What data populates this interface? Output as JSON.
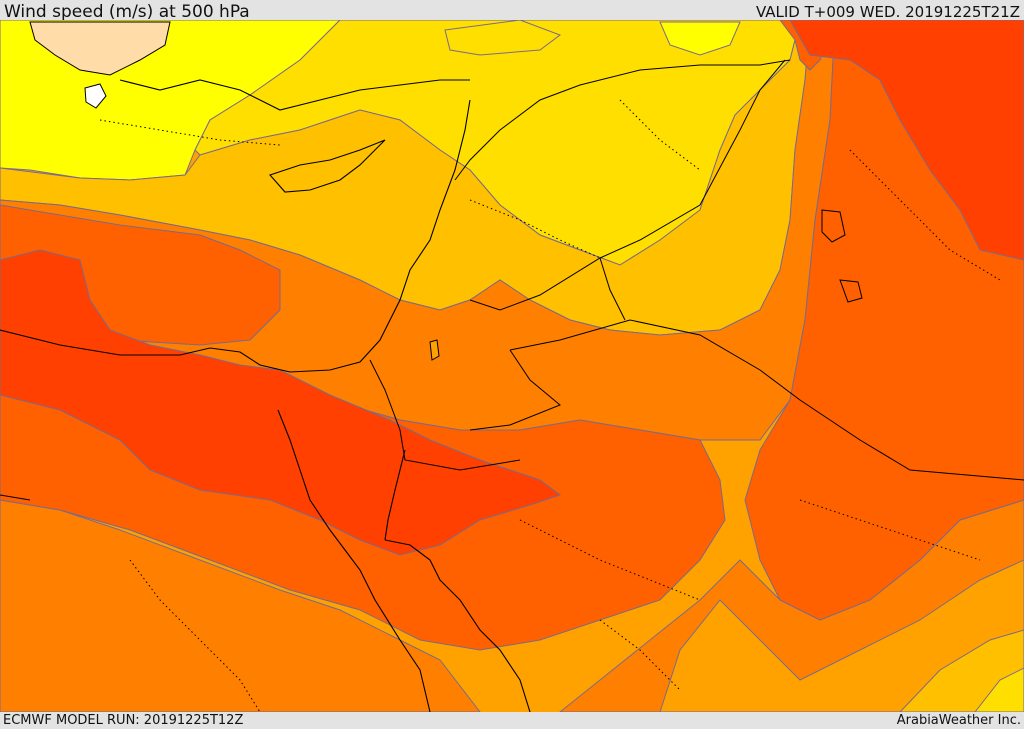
{
  "header": {
    "title": "Wind speed (m/s) at 500 hPa",
    "valid": "VALID T+009 WED. 20191225T21Z"
  },
  "footer": {
    "model_run": "ECMWF MODEL RUN: 20191225T12Z",
    "credit": "ArabiaWeather Inc."
  },
  "colors": {
    "yellow_light": "#ffff00",
    "yellow": "#ffdf00",
    "gold": "#ffc000",
    "amber": "#ffa200",
    "orange": "#ff8000",
    "dark_orange": "#ff6000",
    "red_orange": "#ff4000",
    "land_outside": "#ffdca8",
    "contour": "#7a6a8c",
    "border": "#000000"
  }
}
